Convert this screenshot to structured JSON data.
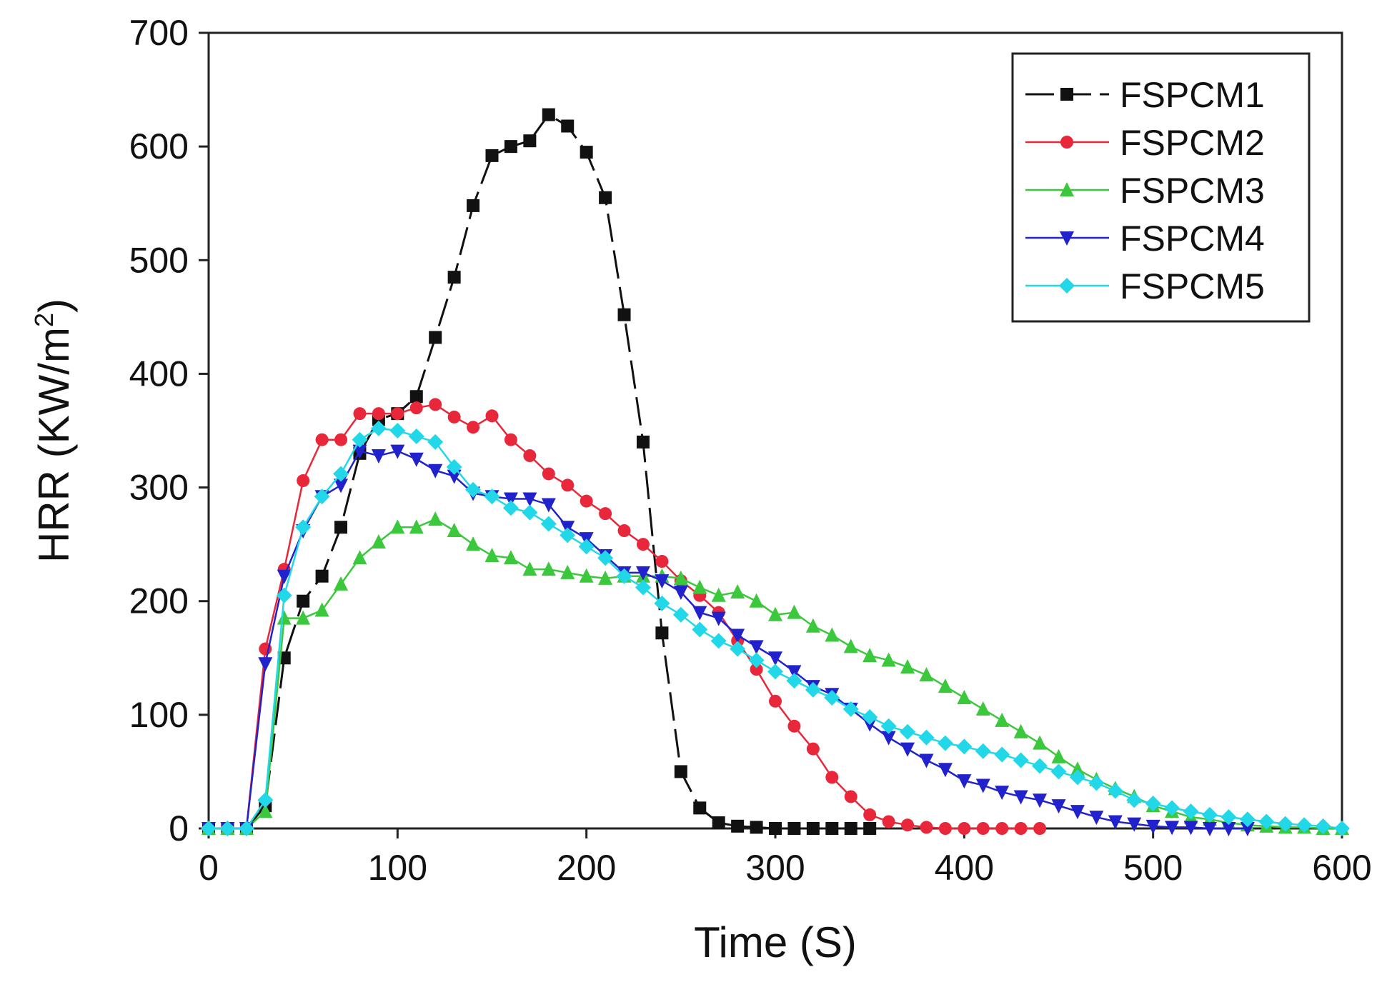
{
  "chart_data": {
    "type": "line",
    "title": "",
    "xlabel": "Time (S)",
    "ylabel_main": "HRR (KW/m",
    "ylabel_sup": "2",
    "ylabel_close": ")",
    "xlim": [
      0,
      600
    ],
    "ylim": [
      0,
      700
    ],
    "xticks": [
      0,
      100,
      200,
      300,
      400,
      500,
      600
    ],
    "yticks": [
      0,
      100,
      200,
      300,
      400,
      500,
      600,
      700
    ],
    "xtick_labels": [
      "0",
      "100",
      "200",
      "300",
      "400",
      "500",
      "600"
    ],
    "ytick_labels": [
      "0",
      "100",
      "200",
      "300",
      "400",
      "500",
      "600",
      "700"
    ],
    "grid": false,
    "legend_position": "top-right",
    "series": [
      {
        "name": "FSPCM1",
        "color": "#111111",
        "marker": "square",
        "dash": "dashed",
        "x": [
          0,
          10,
          20,
          30,
          40,
          50,
          60,
          70,
          80,
          90,
          100,
          110,
          120,
          130,
          140,
          150,
          160,
          170,
          180,
          190,
          200,
          210,
          220,
          230,
          240,
          250,
          260,
          270,
          280,
          290,
          300,
          310,
          320,
          330,
          340,
          350
        ],
        "y": [
          0,
          0,
          0,
          20,
          150,
          200,
          222,
          265,
          330,
          360,
          365,
          380,
          432,
          485,
          548,
          592,
          600,
          605,
          628,
          618,
          595,
          555,
          452,
          340,
          172,
          50,
          18,
          5,
          2,
          1,
          0,
          0,
          0,
          0,
          0,
          0
        ]
      },
      {
        "name": "FSPCM2",
        "color": "#e8283a",
        "marker": "circle",
        "dash": "solid",
        "x": [
          0,
          10,
          20,
          30,
          40,
          50,
          60,
          70,
          80,
          90,
          100,
          110,
          120,
          130,
          140,
          150,
          160,
          170,
          180,
          190,
          200,
          210,
          220,
          230,
          240,
          250,
          260,
          270,
          280,
          290,
          300,
          310,
          320,
          330,
          340,
          350,
          360,
          370,
          380,
          390,
          400,
          410,
          420,
          430,
          440
        ],
        "y": [
          0,
          0,
          0,
          158,
          228,
          306,
          342,
          342,
          365,
          365,
          365,
          370,
          373,
          362,
          353,
          363,
          342,
          328,
          312,
          302,
          288,
          277,
          262,
          250,
          235,
          218,
          205,
          190,
          165,
          140,
          112,
          90,
          70,
          45,
          28,
          12,
          6,
          3,
          1,
          0,
          0,
          0,
          0,
          0,
          0
        ]
      },
      {
        "name": "FSPCM3",
        "color": "#3cc83c",
        "marker": "triangle-up",
        "dash": "solid",
        "x": [
          0,
          10,
          20,
          30,
          40,
          50,
          60,
          70,
          80,
          90,
          100,
          110,
          120,
          130,
          140,
          150,
          160,
          170,
          180,
          190,
          200,
          210,
          220,
          230,
          240,
          250,
          260,
          270,
          280,
          290,
          300,
          310,
          320,
          330,
          340,
          350,
          360,
          370,
          380,
          390,
          400,
          410,
          420,
          430,
          440,
          450,
          460,
          470,
          480,
          490,
          500,
          510,
          520,
          530,
          540,
          550,
          560,
          570,
          580,
          590,
          600
        ],
        "y": [
          0,
          0,
          0,
          15,
          185,
          185,
          192,
          215,
          238,
          252,
          265,
          265,
          272,
          262,
          250,
          240,
          238,
          228,
          228,
          225,
          222,
          220,
          222,
          222,
          222,
          220,
          212,
          205,
          208,
          200,
          188,
          190,
          178,
          170,
          160,
          152,
          148,
          142,
          135,
          125,
          115,
          105,
          95,
          85,
          75,
          63,
          52,
          43,
          35,
          28,
          20,
          15,
          10,
          8,
          5,
          3,
          2,
          1,
          1,
          0,
          0
        ]
      },
      {
        "name": "FSPCM4",
        "color": "#2222cc",
        "marker": "triangle-down",
        "dash": "solid",
        "x": [
          0,
          10,
          20,
          30,
          40,
          50,
          60,
          70,
          80,
          90,
          100,
          110,
          120,
          130,
          140,
          150,
          160,
          170,
          180,
          190,
          200,
          210,
          220,
          230,
          240,
          250,
          260,
          270,
          280,
          290,
          300,
          310,
          320,
          330,
          340,
          350,
          360,
          370,
          380,
          390,
          400,
          410,
          420,
          430,
          440,
          450,
          460,
          470,
          480,
          490,
          500,
          510,
          520,
          530,
          540,
          550
        ],
        "y": [
          0,
          0,
          0,
          145,
          222,
          262,
          292,
          302,
          332,
          328,
          332,
          325,
          315,
          310,
          295,
          292,
          290,
          290,
          285,
          265,
          255,
          240,
          225,
          225,
          218,
          208,
          190,
          185,
          170,
          160,
          150,
          138,
          125,
          118,
          105,
          92,
          80,
          70,
          60,
          52,
          42,
          38,
          32,
          28,
          25,
          20,
          15,
          10,
          6,
          4,
          2,
          1,
          1,
          0,
          0,
          0
        ]
      },
      {
        "name": "FSPCM5",
        "color": "#22d8e8",
        "marker": "diamond",
        "dash": "solid",
        "x": [
          0,
          10,
          20,
          30,
          40,
          50,
          60,
          70,
          80,
          90,
          100,
          110,
          120,
          130,
          140,
          150,
          160,
          170,
          180,
          190,
          200,
          210,
          220,
          230,
          240,
          250,
          260,
          270,
          280,
          290,
          300,
          310,
          320,
          330,
          340,
          350,
          360,
          370,
          380,
          390,
          400,
          410,
          420,
          430,
          440,
          450,
          460,
          470,
          480,
          490,
          500,
          510,
          520,
          530,
          540,
          550,
          560,
          570,
          580,
          590,
          600
        ],
        "y": [
          0,
          0,
          0,
          25,
          205,
          265,
          292,
          312,
          342,
          352,
          350,
          345,
          340,
          318,
          298,
          292,
          282,
          278,
          268,
          258,
          248,
          238,
          222,
          212,
          198,
          188,
          175,
          165,
          158,
          148,
          138,
          130,
          122,
          115,
          105,
          98,
          90,
          85,
          80,
          75,
          72,
          68,
          65,
          60,
          55,
          50,
          45,
          40,
          33,
          25,
          22,
          18,
          15,
          12,
          10,
          8,
          6,
          4,
          3,
          2,
          0
        ]
      }
    ]
  }
}
